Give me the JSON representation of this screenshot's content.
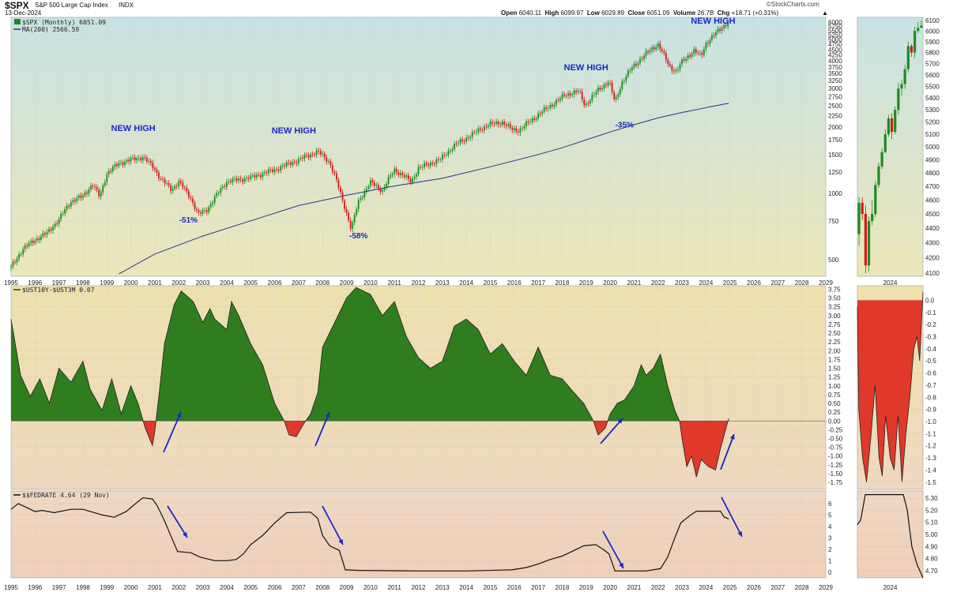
{
  "header": {
    "symbol": "$SPX",
    "name": "S&P 500 Large Cap Index",
    "exchange": "INDX",
    "date": "13-Dec-2024",
    "brand": "©StockCharts.com",
    "quote_open_label": "Open",
    "quote_open": "6040.11",
    "quote_high_label": "High",
    "quote_high": "6099.97",
    "quote_low_label": "Low",
    "quote_low": "6029.89",
    "quote_close_label": "Close",
    "quote_close": "6051.09",
    "quote_volume_label": "Volume",
    "quote_volume": "26.7B",
    "quote_chg_label": "Chg",
    "quote_chg": "+18.71 (+0.31%)"
  },
  "colors": {
    "up_candle": "#1f8a1f",
    "down_candle": "#d11a1a",
    "ma_line": "#28348a",
    "spread_positive": "#2f7d1e",
    "spread_negative": "#e0392b",
    "fed_line": "#111111",
    "annotation": "#1a28c8"
  },
  "chart_data": [
    {
      "id": "spx",
      "type": "candlestick",
      "scale": "log",
      "legend_series": "$SPX (Monthly) 6051.09",
      "legend_ma": "MA(200) 2566.59",
      "x_ticks": [
        "1995",
        "1996",
        "1997",
        "1998",
        "1999",
        "2000",
        "2001",
        "2002",
        "2003",
        "2004",
        "2005",
        "2006",
        "2007",
        "2008",
        "2009",
        "2010",
        "2011",
        "2012",
        "2013",
        "2014",
        "2015",
        "2016",
        "2017",
        "2018",
        "2019",
        "2020",
        "2021",
        "2022",
        "2023",
        "2024",
        "2025",
        "2026",
        "2027",
        "2028",
        "2029"
      ],
      "y_ticks": [
        500,
        750,
        1000,
        1250,
        1500,
        1750,
        2000,
        2250,
        2500,
        2750,
        3000,
        3250,
        3500,
        3750,
        4000,
        4250,
        4500,
        4750,
        5000,
        5250,
        5500,
        5750,
        6000,
        6250
      ],
      "ylim": [
        420,
        6300
      ],
      "close_path": [
        [
          1995,
          460
        ],
        [
          1995.5,
          560
        ],
        [
          1996,
          615
        ],
        [
          1996.5,
          660
        ],
        [
          1997,
          760
        ],
        [
          1997.5,
          920
        ],
        [
          1998,
          970
        ],
        [
          1998.4,
          1100
        ],
        [
          1998.7,
          960
        ],
        [
          1999,
          1230
        ],
        [
          1999.5,
          1370
        ],
        [
          2000,
          1420
        ],
        [
          2000.5,
          1460
        ],
        [
          2000.9,
          1330
        ],
        [
          2001.25,
          1160
        ],
        [
          2001.7,
          1040
        ],
        [
          2002,
          1130
        ],
        [
          2002.5,
          950
        ],
        [
          2002.8,
          800
        ],
        [
          2003.2,
          848
        ],
        [
          2003.6,
          990
        ],
        [
          2004,
          1130
        ],
        [
          2005,
          1180
        ],
        [
          2006,
          1280
        ],
        [
          2007,
          1420
        ],
        [
          2007.8,
          1550
        ],
        [
          2008.3,
          1380
        ],
        [
          2008.8,
          950
        ],
        [
          2009.2,
          680
        ],
        [
          2009.5,
          920
        ],
        [
          2010,
          1120
        ],
        [
          2010.5,
          1030
        ],
        [
          2011,
          1280
        ],
        [
          2011.7,
          1130
        ],
        [
          2012,
          1300
        ],
        [
          2012.9,
          1420
        ],
        [
          2013.5,
          1650
        ],
        [
          2014,
          1780
        ],
        [
          2014.9,
          2050
        ],
        [
          2015.5,
          2100
        ],
        [
          2015.9,
          1950
        ],
        [
          2016.2,
          1930
        ],
        [
          2016.9,
          2230
        ],
        [
          2017.9,
          2680
        ],
        [
          2018.1,
          2800
        ],
        [
          2018.7,
          2910
        ],
        [
          2018.95,
          2500
        ],
        [
          2019.5,
          2950
        ],
        [
          2019.95,
          3230
        ],
        [
          2020.2,
          2580
        ],
        [
          2020.5,
          3200
        ],
        [
          2020.95,
          3760
        ],
        [
          2021.5,
          4300
        ],
        [
          2021.99,
          4770
        ],
        [
          2022.45,
          3800
        ],
        [
          2022.75,
          3580
        ],
        [
          2023,
          3950
        ],
        [
          2023.5,
          4450
        ],
        [
          2023.8,
          4190
        ],
        [
          2024,
          4800
        ],
        [
          2024.5,
          5450
        ],
        [
          2024.95,
          6051
        ]
      ],
      "ma200_path": [
        [
          1999.5,
          430
        ],
        [
          2001,
          530
        ],
        [
          2003,
          640
        ],
        [
          2005,
          750
        ],
        [
          2007,
          880
        ],
        [
          2009,
          980
        ],
        [
          2011,
          1080
        ],
        [
          2013,
          1170
        ],
        [
          2015,
          1320
        ],
        [
          2017,
          1500
        ],
        [
          2018,
          1610
        ],
        [
          2019,
          1750
        ],
        [
          2020,
          1900
        ],
        [
          2021,
          2050
        ],
        [
          2022,
          2200
        ],
        [
          2023,
          2330
        ],
        [
          2024,
          2450
        ],
        [
          2024.95,
          2566.59
        ]
      ],
      "annotations": [
        {
          "text": "NEW HIGH",
          "x": 2000.1,
          "y": 1920
        },
        {
          "text": "NEW HIGH",
          "x": 2006.8,
          "y": 1870
        },
        {
          "text": "NEW HIGH",
          "x": 2019,
          "y": 3620
        },
        {
          "text": "NEW HIGH",
          "x": 2024.3,
          "y": 5900
        },
        {
          "text": "-51%",
          "x": 2002.4,
          "y": 735
        },
        {
          "text": "-58%",
          "x": 2009.5,
          "y": 625
        },
        {
          "text": "-35%",
          "x": 2020.6,
          "y": 1990
        }
      ],
      "inset": {
        "x_label": "2024",
        "y_ticks": [
          4100,
          4200,
          4300,
          4400,
          4500,
          4600,
          4700,
          4800,
          4900,
          5000,
          5100,
          5200,
          5300,
          5400,
          5500,
          5600,
          5700,
          5800,
          5900,
          6000,
          6100
        ],
        "ylim": [
          4080,
          6130
        ],
        "candles": [
          [
            4360,
            4580,
            4280,
            4620
          ],
          [
            4580,
            4500,
            4460,
            4620
          ],
          [
            4500,
            4150,
            4100,
            4560
          ],
          [
            4150,
            4450,
            4110,
            4480
          ],
          [
            4450,
            4500,
            4420,
            4600
          ],
          [
            4500,
            4710,
            4480,
            4740
          ],
          [
            4710,
            4850,
            4690,
            4880
          ],
          [
            4850,
            4960,
            4830,
            4990
          ],
          [
            4960,
            5100,
            4950,
            5140
          ],
          [
            5100,
            5230,
            5080,
            5260
          ],
          [
            5230,
            5120,
            5060,
            5270
          ],
          [
            5120,
            5300,
            5100,
            5330
          ],
          [
            5300,
            5480,
            5260,
            5530
          ],
          [
            5480,
            5520,
            5420,
            5560
          ],
          [
            5520,
            5650,
            5480,
            5690
          ],
          [
            5650,
            5860,
            5620,
            5900
          ],
          [
            5860,
            5800,
            5760,
            5880
          ],
          [
            5800,
            6000,
            5750,
            6040
          ],
          [
            6000,
            6030,
            5980,
            6090
          ],
          [
            6030,
            6051,
            6029,
            6100
          ]
        ]
      }
    },
    {
      "id": "spread",
      "type": "area",
      "legend_series": "$UST10Y-$UST3M 0.07",
      "y_ticks": [
        -1.75,
        -1.5,
        -1.25,
        -1.0,
        -0.75,
        -0.5,
        -0.25,
        0.0,
        0.25,
        0.5,
        0.75,
        1.0,
        1.25,
        1.5,
        1.75,
        2.0,
        2.25,
        2.5,
        2.75,
        3.0,
        3.25,
        3.5,
        3.75
      ],
      "ylim": [
        -1.95,
        3.85
      ],
      "series": [
        [
          1995,
          2.9
        ],
        [
          1995.4,
          1.3
        ],
        [
          1995.8,
          0.7
        ],
        [
          1996.2,
          1.2
        ],
        [
          1996.6,
          0.5
        ],
        [
          1997,
          1.5
        ],
        [
          1997.5,
          1.1
        ],
        [
          1998,
          1.7
        ],
        [
          1998.3,
          0.9
        ],
        [
          1998.8,
          0.3
        ],
        [
          1999.2,
          1.2
        ],
        [
          1999.6,
          0.2
        ],
        [
          2000,
          1.0
        ],
        [
          2000.3,
          0.5
        ],
        [
          2000.6,
          -0.2
        ],
        [
          2000.9,
          -0.7
        ],
        [
          2001,
          -0.3
        ],
        [
          2001.2,
          0.9
        ],
        [
          2001.4,
          2.2
        ],
        [
          2001.8,
          3.3
        ],
        [
          2002.1,
          3.7
        ],
        [
          2002.6,
          3.4
        ],
        [
          2003,
          2.8
        ],
        [
          2003.3,
          3.2
        ],
        [
          2003.5,
          2.9
        ],
        [
          2004,
          2.6
        ],
        [
          2004.2,
          3.4
        ],
        [
          2004.5,
          3.0
        ],
        [
          2005,
          2.2
        ],
        [
          2005.5,
          1.6
        ],
        [
          2006,
          0.5
        ],
        [
          2006.4,
          0.0
        ],
        [
          2006.6,
          -0.4
        ],
        [
          2006.9,
          -0.45
        ],
        [
          2007.2,
          -0.1
        ],
        [
          2007.5,
          0.2
        ],
        [
          2007.8,
          0.8
        ],
        [
          2008,
          2.1
        ],
        [
          2008.5,
          2.8
        ],
        [
          2009,
          3.5
        ],
        [
          2009.4,
          3.8
        ],
        [
          2010,
          3.6
        ],
        [
          2010.5,
          3.0
        ],
        [
          2011,
          3.4
        ],
        [
          2011.5,
          2.4
        ],
        [
          2012,
          1.8
        ],
        [
          2012.5,
          1.5
        ],
        [
          2013,
          1.7
        ],
        [
          2013.5,
          2.7
        ],
        [
          2014,
          2.9
        ],
        [
          2014.5,
          2.6
        ],
        [
          2015,
          1.9
        ],
        [
          2015.5,
          2.2
        ],
        [
          2016,
          1.7
        ],
        [
          2016.5,
          1.3
        ],
        [
          2017,
          2.1
        ],
        [
          2017.5,
          1.3
        ],
        [
          2018,
          1.2
        ],
        [
          2018.5,
          0.8
        ],
        [
          2018.9,
          0.5
        ],
        [
          2019.3,
          0.0
        ],
        [
          2019.5,
          -0.4
        ],
        [
          2019.8,
          -0.2
        ],
        [
          2020,
          0.2
        ],
        [
          2020.3,
          0.5
        ],
        [
          2020.6,
          0.6
        ],
        [
          2021,
          1.0
        ],
        [
          2021.3,
          1.6
        ],
        [
          2021.5,
          1.3
        ],
        [
          2021.8,
          1.5
        ],
        [
          2022.1,
          1.9
        ],
        [
          2022.4,
          1.0
        ],
        [
          2022.7,
          0.3
        ],
        [
          2022.9,
          0.0
        ],
        [
          2023,
          -0.5
        ],
        [
          2023.2,
          -1.3
        ],
        [
          2023.4,
          -1.0
        ],
        [
          2023.6,
          -1.6
        ],
        [
          2023.8,
          -1.1
        ],
        [
          2024.1,
          -1.3
        ],
        [
          2024.4,
          -1.4
        ],
        [
          2024.6,
          -0.8
        ],
        [
          2024.8,
          -0.3
        ],
        [
          2024.95,
          0.07
        ]
      ],
      "inset": {
        "x_label": "2024",
        "y_ticks": [
          0.0,
          -0.1,
          -0.2,
          -0.3,
          -0.4,
          -0.5,
          -0.6,
          -0.7,
          -0.8,
          -0.9,
          -1.0,
          -1.1,
          -1.2,
          -1.3,
          -1.4,
          -1.5
        ],
        "ylim": [
          -1.56,
          0.12
        ],
        "series": [
          [
            0,
            -0.05
          ],
          [
            0.02,
            -0.9
          ],
          [
            0.08,
            -1.3
          ],
          [
            0.14,
            -1.5
          ],
          [
            0.21,
            -1.1
          ],
          [
            0.27,
            -0.7
          ],
          [
            0.33,
            -1.3
          ],
          [
            0.38,
            -1.45
          ],
          [
            0.43,
            -0.95
          ],
          [
            0.5,
            -1.3
          ],
          [
            0.56,
            -1.4
          ],
          [
            0.62,
            -0.95
          ],
          [
            0.68,
            -1.5
          ],
          [
            0.74,
            -1.1
          ],
          [
            0.8,
            -0.8
          ],
          [
            0.86,
            -0.4
          ],
          [
            0.91,
            -0.3
          ],
          [
            0.95,
            -0.5
          ],
          [
            1.0,
            0.07
          ]
        ]
      }
    },
    {
      "id": "fedrate",
      "type": "line",
      "legend_series": "$$FEDRATE 4.64 (29 Nov)",
      "y_ticks": [
        0,
        1,
        2,
        3,
        4,
        5,
        6
      ],
      "ylim": [
        -0.5,
        7.1
      ],
      "series": [
        [
          1995,
          5.5
        ],
        [
          1995.3,
          6.0
        ],
        [
          1995.6,
          5.7
        ],
        [
          1996,
          5.3
        ],
        [
          1996.3,
          5.4
        ],
        [
          1996.8,
          5.2
        ],
        [
          1997.5,
          5.5
        ],
        [
          1998,
          5.5
        ],
        [
          1998.8,
          5.0
        ],
        [
          1999.3,
          4.8
        ],
        [
          1999.8,
          5.3
        ],
        [
          2000.2,
          6.0
        ],
        [
          2000.5,
          6.5
        ],
        [
          2000.9,
          6.4
        ],
        [
          2001.1,
          5.8
        ],
        [
          2001.4,
          4.5
        ],
        [
          2001.7,
          3.0
        ],
        [
          2001.95,
          1.8
        ],
        [
          2002.5,
          1.7
        ],
        [
          2002.9,
          1.3
        ],
        [
          2003.5,
          1.0
        ],
        [
          2004,
          1.0
        ],
        [
          2004.4,
          1.1
        ],
        [
          2004.7,
          1.6
        ],
        [
          2005,
          2.4
        ],
        [
          2005.5,
          3.2
        ],
        [
          2006,
          4.3
        ],
        [
          2006.5,
          5.2
        ],
        [
          2007.5,
          5.25
        ],
        [
          2007.8,
          4.7
        ],
        [
          2008,
          3.2
        ],
        [
          2008.3,
          2.3
        ],
        [
          2008.7,
          1.9
        ],
        [
          2008.95,
          0.2
        ],
        [
          2009.5,
          0.15
        ],
        [
          2012,
          0.1
        ],
        [
          2014,
          0.1
        ],
        [
          2015.9,
          0.2
        ],
        [
          2016.5,
          0.4
        ],
        [
          2017,
          0.7
        ],
        [
          2017.5,
          1.1
        ],
        [
          2018,
          1.4
        ],
        [
          2018.5,
          1.9
        ],
        [
          2018.9,
          2.3
        ],
        [
          2019.4,
          2.4
        ],
        [
          2019.7,
          2.0
        ],
        [
          2019.95,
          1.6
        ],
        [
          2020.2,
          0.1
        ],
        [
          2021.5,
          0.1
        ],
        [
          2022.1,
          0.3
        ],
        [
          2022.4,
          1.3
        ],
        [
          2022.7,
          3.0
        ],
        [
          2022.95,
          4.3
        ],
        [
          2023.3,
          4.9
        ],
        [
          2023.6,
          5.33
        ],
        [
          2024.6,
          5.33
        ],
        [
          2024.75,
          4.85
        ],
        [
          2024.95,
          4.64
        ]
      ],
      "inset": {
        "x_label": "2024",
        "y_ticks": [
          4.7,
          4.8,
          4.9,
          5.0,
          5.1,
          5.2,
          5.3
        ],
        "ylim": [
          4.64,
          5.36
        ],
        "series": [
          [
            0,
            5.08
          ],
          [
            0.05,
            5.12
          ],
          [
            0.12,
            5.33
          ],
          [
            0.7,
            5.33
          ],
          [
            0.76,
            5.2
          ],
          [
            0.83,
            4.9
          ],
          [
            0.91,
            4.75
          ],
          [
            1.0,
            4.64
          ]
        ]
      }
    }
  ]
}
